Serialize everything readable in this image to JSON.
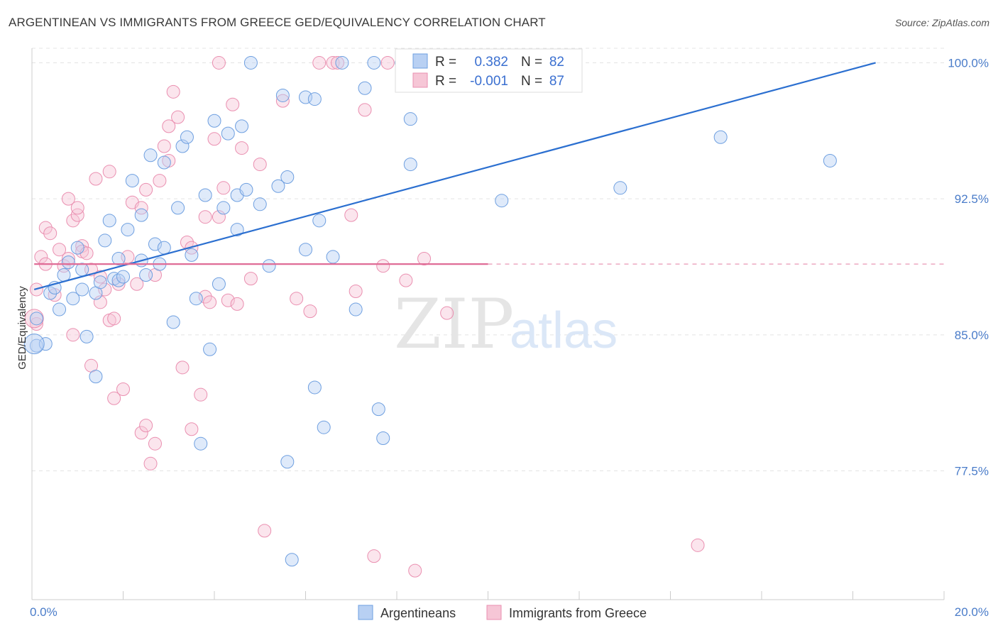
{
  "title": "ARGENTINEAN VS IMMIGRANTS FROM GREECE GED/EQUIVALENCY CORRELATION CHART",
  "source": "Source: ZipAtlas.com",
  "watermark": {
    "zip": "ZIP",
    "atlas": "atlas"
  },
  "colors": {
    "blue": "#6e9fe0",
    "blue_fill": "#b8d0f3",
    "pink": "#ea8fb0",
    "pink_fill": "#f6c6d6",
    "blue_line": "#2b6fd0",
    "pink_line": "#e06d97"
  },
  "legend": {
    "rows": [
      {
        "r_label": "R =",
        "r_value": "0.382",
        "n_label": "N =",
        "n_value": "82"
      },
      {
        "r_label": "R =",
        "r_value": "-0.001",
        "n_label": "N =",
        "n_value": "87"
      }
    ]
  },
  "bottom_legend": [
    "Argentineans",
    "Immigrants from Greece"
  ],
  "chart_data": {
    "type": "scatter",
    "ylabel": "GED/Equivalency",
    "xlim": [
      0,
      20
    ],
    "ylim": [
      70.4,
      100.8
    ],
    "x_tick_labels": [
      "0.0%",
      "20.0%"
    ],
    "y_ticks": [
      77.5,
      85.0,
      92.5,
      100.0
    ],
    "y_tick_labels": [
      "77.5%",
      "85.0%",
      "92.5%",
      "100.0%"
    ],
    "grid": true,
    "series": [
      {
        "name": "Argentineans",
        "trend": {
          "x": [
            0.05,
            18.5
          ],
          "y": [
            87.5,
            100.0
          ]
        },
        "points": [
          [
            0.1,
            84.4
          ],
          [
            0.1,
            85.9
          ],
          [
            0.3,
            84.5
          ],
          [
            0.4,
            87.3
          ],
          [
            0.5,
            87.6
          ],
          [
            0.6,
            86.4
          ],
          [
            0.7,
            88.3
          ],
          [
            0.8,
            89.0
          ],
          [
            0.9,
            87.0
          ],
          [
            1.0,
            89.8
          ],
          [
            1.1,
            88.6
          ],
          [
            1.1,
            87.5
          ],
          [
            1.2,
            84.9
          ],
          [
            1.4,
            82.7
          ],
          [
            1.4,
            87.3
          ],
          [
            1.5,
            87.9
          ],
          [
            1.6,
            90.2
          ],
          [
            1.7,
            91.3
          ],
          [
            1.8,
            88.1
          ],
          [
            1.9,
            88.0
          ],
          [
            1.9,
            89.2
          ],
          [
            2.0,
            88.2
          ],
          [
            2.1,
            90.8
          ],
          [
            2.2,
            93.5
          ],
          [
            2.4,
            89.1
          ],
          [
            2.4,
            91.6
          ],
          [
            2.5,
            88.3
          ],
          [
            2.6,
            94.9
          ],
          [
            2.7,
            90.0
          ],
          [
            2.8,
            88.9
          ],
          [
            2.9,
            89.8
          ],
          [
            2.9,
            94.5
          ],
          [
            3.1,
            85.7
          ],
          [
            3.2,
            92.0
          ],
          [
            3.3,
            95.4
          ],
          [
            3.4,
            95.9
          ],
          [
            3.5,
            89.4
          ],
          [
            3.6,
            87.0
          ],
          [
            3.7,
            79.0
          ],
          [
            3.8,
            92.7
          ],
          [
            3.9,
            84.2
          ],
          [
            4.0,
            96.8
          ],
          [
            4.1,
            87.8
          ],
          [
            4.2,
            92.0
          ],
          [
            4.3,
            96.1
          ],
          [
            4.5,
            92.7
          ],
          [
            4.5,
            90.8
          ],
          [
            4.6,
            96.5
          ],
          [
            4.7,
            93.0
          ],
          [
            4.8,
            100.0
          ],
          [
            5.0,
            92.2
          ],
          [
            5.2,
            88.8
          ],
          [
            5.4,
            93.2
          ],
          [
            5.5,
            98.2
          ],
          [
            5.6,
            93.7
          ],
          [
            5.6,
            78.0
          ],
          [
            5.7,
            72.6
          ],
          [
            6.0,
            89.7
          ],
          [
            6.0,
            98.1
          ],
          [
            6.2,
            98.0
          ],
          [
            6.2,
            82.1
          ],
          [
            6.3,
            91.3
          ],
          [
            6.4,
            79.9
          ],
          [
            6.6,
            89.3
          ],
          [
            6.8,
            100.0
          ],
          [
            7.1,
            86.4
          ],
          [
            7.3,
            98.6
          ],
          [
            7.5,
            100.0
          ],
          [
            7.6,
            80.9
          ],
          [
            7.7,
            79.3
          ],
          [
            8.1,
            100.0
          ],
          [
            8.3,
            96.9
          ],
          [
            8.3,
            94.4
          ],
          [
            8.5,
            100.0
          ],
          [
            8.9,
            100.0
          ],
          [
            9.3,
            100.0
          ],
          [
            9.6,
            100.0
          ],
          [
            10.3,
            92.4
          ],
          [
            10.4,
            100.0
          ],
          [
            12.9,
            93.1
          ],
          [
            15.1,
            95.9
          ],
          [
            17.5,
            94.6
          ]
        ]
      },
      {
        "name": "Immigrants from Greece",
        "trend": {
          "x": [
            0.05,
            10.0
          ],
          "y": [
            88.9,
            88.9
          ]
        },
        "trend_dashed": {
          "x": [
            10.0,
            20.0
          ],
          "y": [
            88.9,
            88.9
          ]
        },
        "points": [
          [
            0.1,
            87.5
          ],
          [
            0.1,
            85.6
          ],
          [
            0.2,
            89.3
          ],
          [
            0.3,
            88.9
          ],
          [
            0.3,
            90.9
          ],
          [
            0.4,
            90.6
          ],
          [
            0.5,
            87.2
          ],
          [
            0.6,
            89.7
          ],
          [
            0.7,
            88.8
          ],
          [
            0.8,
            89.2
          ],
          [
            0.8,
            92.5
          ],
          [
            0.9,
            91.3
          ],
          [
            0.9,
            85.0
          ],
          [
            1.0,
            91.6
          ],
          [
            1.0,
            92.0
          ],
          [
            1.1,
            89.9
          ],
          [
            1.1,
            89.6
          ],
          [
            1.2,
            89.5
          ],
          [
            1.3,
            88.6
          ],
          [
            1.3,
            83.3
          ],
          [
            1.4,
            93.6
          ],
          [
            1.5,
            88.2
          ],
          [
            1.5,
            86.8
          ],
          [
            1.6,
            87.5
          ],
          [
            1.7,
            94.0
          ],
          [
            1.7,
            85.8
          ],
          [
            1.8,
            81.5
          ],
          [
            1.8,
            85.9
          ],
          [
            1.9,
            87.8
          ],
          [
            2.0,
            82.0
          ],
          [
            2.1,
            89.3
          ],
          [
            2.2,
            92.3
          ],
          [
            2.3,
            87.8
          ],
          [
            2.4,
            92.0
          ],
          [
            2.4,
            79.6
          ],
          [
            2.5,
            80.0
          ],
          [
            2.5,
            93.0
          ],
          [
            2.6,
            77.9
          ],
          [
            2.7,
            88.3
          ],
          [
            2.7,
            79.0
          ],
          [
            2.8,
            93.5
          ],
          [
            2.9,
            95.4
          ],
          [
            3.0,
            94.6
          ],
          [
            3.0,
            96.5
          ],
          [
            3.1,
            98.4
          ],
          [
            3.2,
            97.0
          ],
          [
            3.3,
            83.2
          ],
          [
            3.4,
            90.1
          ],
          [
            3.5,
            89.8
          ],
          [
            3.5,
            79.8
          ],
          [
            3.7,
            81.7
          ],
          [
            3.8,
            91.5
          ],
          [
            3.8,
            87.1
          ],
          [
            3.9,
            86.8
          ],
          [
            4.0,
            95.8
          ],
          [
            4.1,
            91.5
          ],
          [
            4.1,
            100.0
          ],
          [
            4.2,
            93.1
          ],
          [
            4.3,
            86.9
          ],
          [
            4.4,
            97.7
          ],
          [
            4.5,
            86.7
          ],
          [
            4.6,
            95.3
          ],
          [
            4.8,
            88.1
          ],
          [
            5.0,
            94.4
          ],
          [
            5.1,
            74.2
          ],
          [
            5.5,
            97.9
          ],
          [
            5.8,
            87.0
          ],
          [
            6.1,
            86.3
          ],
          [
            6.3,
            100.0
          ],
          [
            6.6,
            100.0
          ],
          [
            6.7,
            100.0
          ],
          [
            7.0,
            91.6
          ],
          [
            7.1,
            87.4
          ],
          [
            7.3,
            97.4
          ],
          [
            7.5,
            72.8
          ],
          [
            7.7,
            88.8
          ],
          [
            7.8,
            100.0
          ],
          [
            8.2,
            88.0
          ],
          [
            8.4,
            72.0
          ],
          [
            8.6,
            89.2
          ],
          [
            9.1,
            86.2
          ],
          [
            9.3,
            100.0
          ],
          [
            9.6,
            100.0
          ],
          [
            10.2,
            100.0
          ],
          [
            10.5,
            100.0
          ],
          [
            11.0,
            99.8
          ],
          [
            14.6,
            73.4
          ]
        ]
      }
    ]
  }
}
